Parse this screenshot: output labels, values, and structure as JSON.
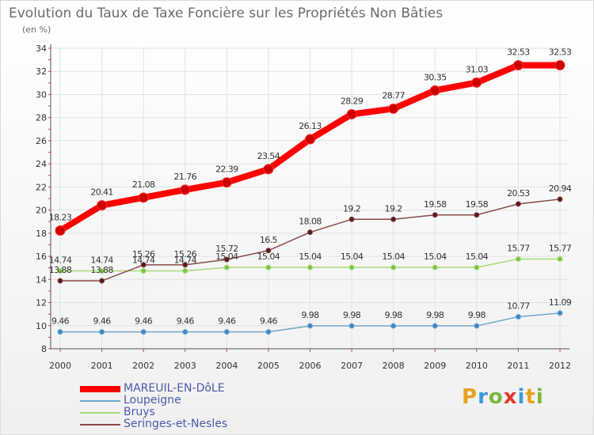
{
  "title": "Evolution du Taux de Taxe Foncière sur les Propriétés Non Bâties",
  "unit": "(en %)",
  "logo": {
    "letters": [
      "P",
      "r",
      "o",
      "x",
      "i",
      "t",
      "i"
    ],
    "colors": [
      "#e8a21c",
      "#3a9ad9",
      "#7ab83c",
      "#e2372b",
      "#3a9ad9",
      "#e8a21c",
      "#7ab83c"
    ]
  },
  "chart_data": {
    "type": "line",
    "title": "Evolution du Taux de Taxe Foncière sur les Propriétés Non Bâties",
    "ylabel": "(en %)",
    "ylim": [
      8,
      34
    ],
    "yticks": [
      8,
      10,
      12,
      14,
      16,
      18,
      20,
      22,
      24,
      26,
      28,
      30,
      32,
      34
    ],
    "x": [
      "2000",
      "2001",
      "2002",
      "2003",
      "2004",
      "2005",
      "2006",
      "2007",
      "2008",
      "2009",
      "2010",
      "2011",
      "2012"
    ],
    "grid": true,
    "legend_position": "bottom-left",
    "series": [
      {
        "name": "MAREUIL-EN-DôLE",
        "color": "#ff0000",
        "marker_color": "#cc0000",
        "values": [
          18.23,
          20.41,
          21.08,
          21.76,
          22.39,
          23.54,
          26.13,
          28.29,
          28.77,
          30.35,
          31.03,
          32.53,
          32.53
        ]
      },
      {
        "name": "Loupeigne",
        "color": "#6fa8d0",
        "marker_color": "#3b88c4",
        "values": [
          9.46,
          9.46,
          9.46,
          9.46,
          9.46,
          9.46,
          9.98,
          9.98,
          9.98,
          9.98,
          9.98,
          10.77,
          11.09
        ]
      },
      {
        "name": "Bruys",
        "color": "#a6db7b",
        "marker_color": "#7cc441",
        "values": [
          14.74,
          14.74,
          14.74,
          14.74,
          15.04,
          15.04,
          15.04,
          15.04,
          15.04,
          15.04,
          15.04,
          15.77,
          15.77
        ]
      },
      {
        "name": "Seringes-et-Nesles",
        "color": "#8a4a4a",
        "marker_color": "#5a1a1a",
        "values": [
          13.88,
          13.88,
          15.26,
          15.26,
          15.72,
          16.5,
          18.08,
          19.2,
          19.2,
          19.58,
          19.58,
          20.53,
          20.94
        ]
      }
    ]
  }
}
